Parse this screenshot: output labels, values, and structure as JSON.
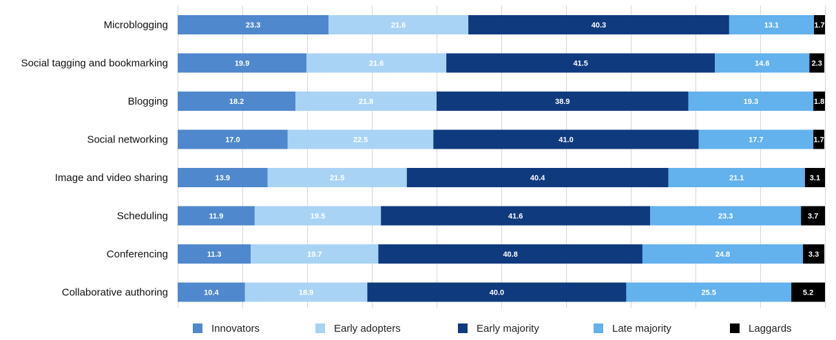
{
  "chart_data": {
    "type": "bar",
    "orientation": "horizontal",
    "stacked": true,
    "categories": [
      "Microblogging",
      "Social tagging and bookmarking",
      "Blogging",
      "Social networking",
      "Image and video sharing",
      "Scheduling",
      "Conferencing",
      "Collaborative authoring"
    ],
    "series": [
      {
        "name": "Innovators",
        "color": "#4f88cc",
        "label_color": "#ffffff",
        "values": [
          23.3,
          19.9,
          18.2,
          17.0,
          13.9,
          11.9,
          11.3,
          10.4
        ]
      },
      {
        "name": "Early adopters",
        "color": "#a9d3f5",
        "label_color": "#ffffff",
        "values": [
          21.6,
          21.6,
          21.8,
          22.5,
          21.5,
          19.5,
          19.7,
          18.9
        ]
      },
      {
        "name": "Early majority",
        "color": "#0f3a7e",
        "label_color": "#ffffff",
        "values": [
          40.3,
          41.5,
          38.9,
          41.0,
          40.4,
          41.6,
          40.8,
          40.0
        ]
      },
      {
        "name": "Late majority",
        "color": "#63b1ed",
        "label_color": "#ffffff",
        "values": [
          13.1,
          14.6,
          19.3,
          17.7,
          21.1,
          23.3,
          24.8,
          25.5
        ]
      },
      {
        "name": "Laggards",
        "color": "#000000",
        "label_color": "#ffffff",
        "values": [
          1.7,
          2.3,
          1.8,
          1.7,
          3.1,
          3.7,
          3.3,
          5.2
        ]
      }
    ],
    "xlim": [
      0,
      100
    ],
    "grid": true,
    "legend_position": "bottom",
    "data_labels": true,
    "title": "",
    "xlabel": "",
    "ylabel": ""
  }
}
